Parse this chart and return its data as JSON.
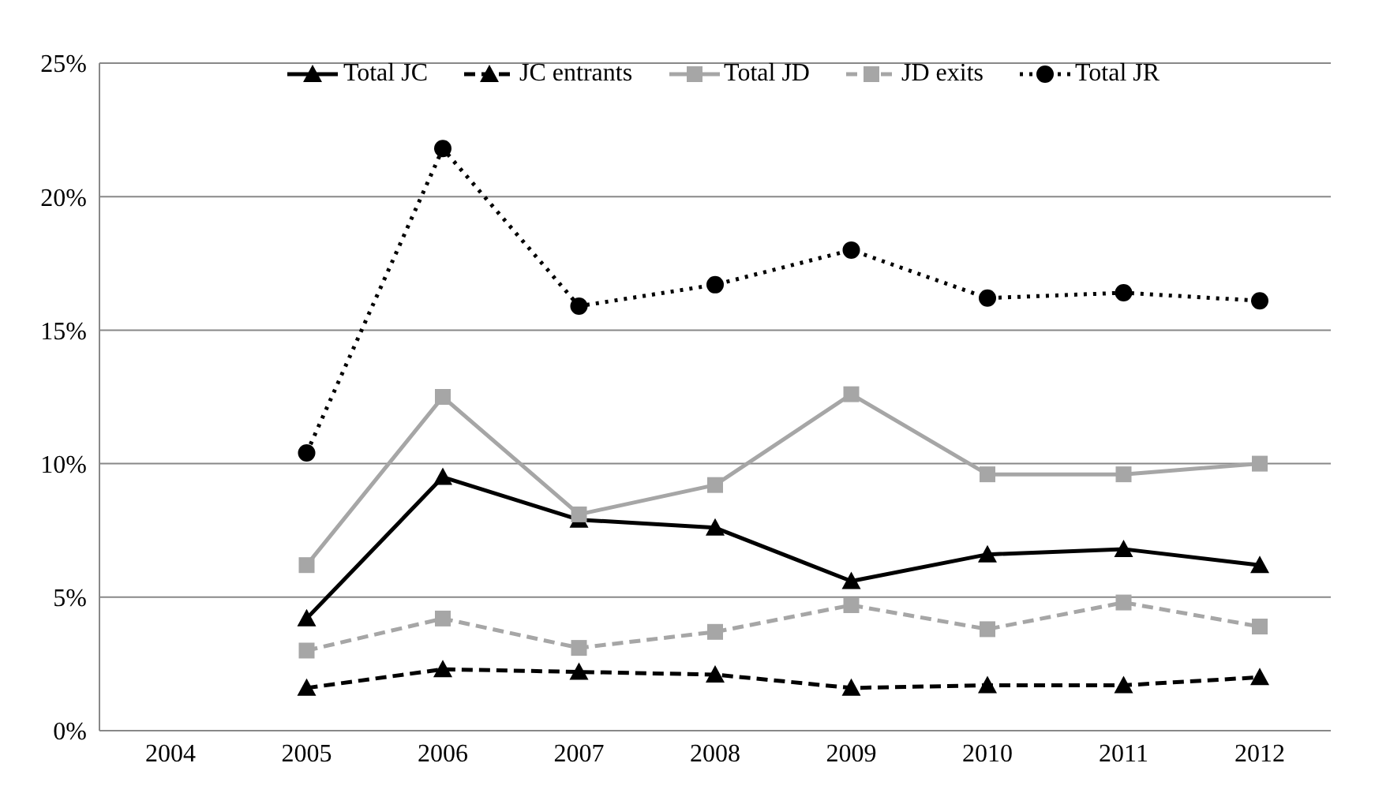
{
  "chart_data": {
    "type": "line",
    "categories": [
      "2004",
      "2005",
      "2006",
      "2007",
      "2008",
      "2009",
      "2010",
      "2011",
      "2012"
    ],
    "series": [
      {
        "name": "Total JC",
        "color": "#000000",
        "marker": "triangle",
        "line_style": "solid",
        "values": [
          null,
          4.2,
          9.5,
          7.9,
          7.6,
          5.6,
          6.6,
          6.8,
          6.2
        ]
      },
      {
        "name": "JC entrants",
        "color": "#000000",
        "marker": "triangle",
        "line_style": "dashed",
        "values": [
          null,
          1.6,
          2.3,
          2.2,
          2.1,
          1.6,
          1.7,
          1.7,
          2.0
        ]
      },
      {
        "name": "Total JD",
        "color": "#a6a6a6",
        "marker": "square",
        "line_style": "solid",
        "values": [
          null,
          6.2,
          12.5,
          8.1,
          9.2,
          12.6,
          9.6,
          9.6,
          10.0
        ]
      },
      {
        "name": "JD exits",
        "color": "#a6a6a6",
        "marker": "square",
        "line_style": "dashed",
        "values": [
          null,
          3.0,
          4.2,
          3.1,
          3.7,
          4.7,
          3.8,
          4.8,
          3.9
        ]
      },
      {
        "name": "Total JR",
        "color": "#000000",
        "marker": "circle",
        "line_style": "dotted",
        "values": [
          null,
          10.4,
          21.8,
          15.9,
          16.7,
          18.0,
          16.2,
          16.4,
          16.1
        ]
      }
    ],
    "ylim": [
      0,
      25
    ],
    "yticks": [
      {
        "value": 0,
        "label": "0%"
      },
      {
        "value": 5,
        "label": "5%"
      },
      {
        "value": 10,
        "label": "10%"
      },
      {
        "value": 15,
        "label": "15%"
      },
      {
        "value": 20,
        "label": "20%"
      },
      {
        "value": 25,
        "label": "25%"
      }
    ],
    "grid": "y",
    "legend": "top"
  }
}
